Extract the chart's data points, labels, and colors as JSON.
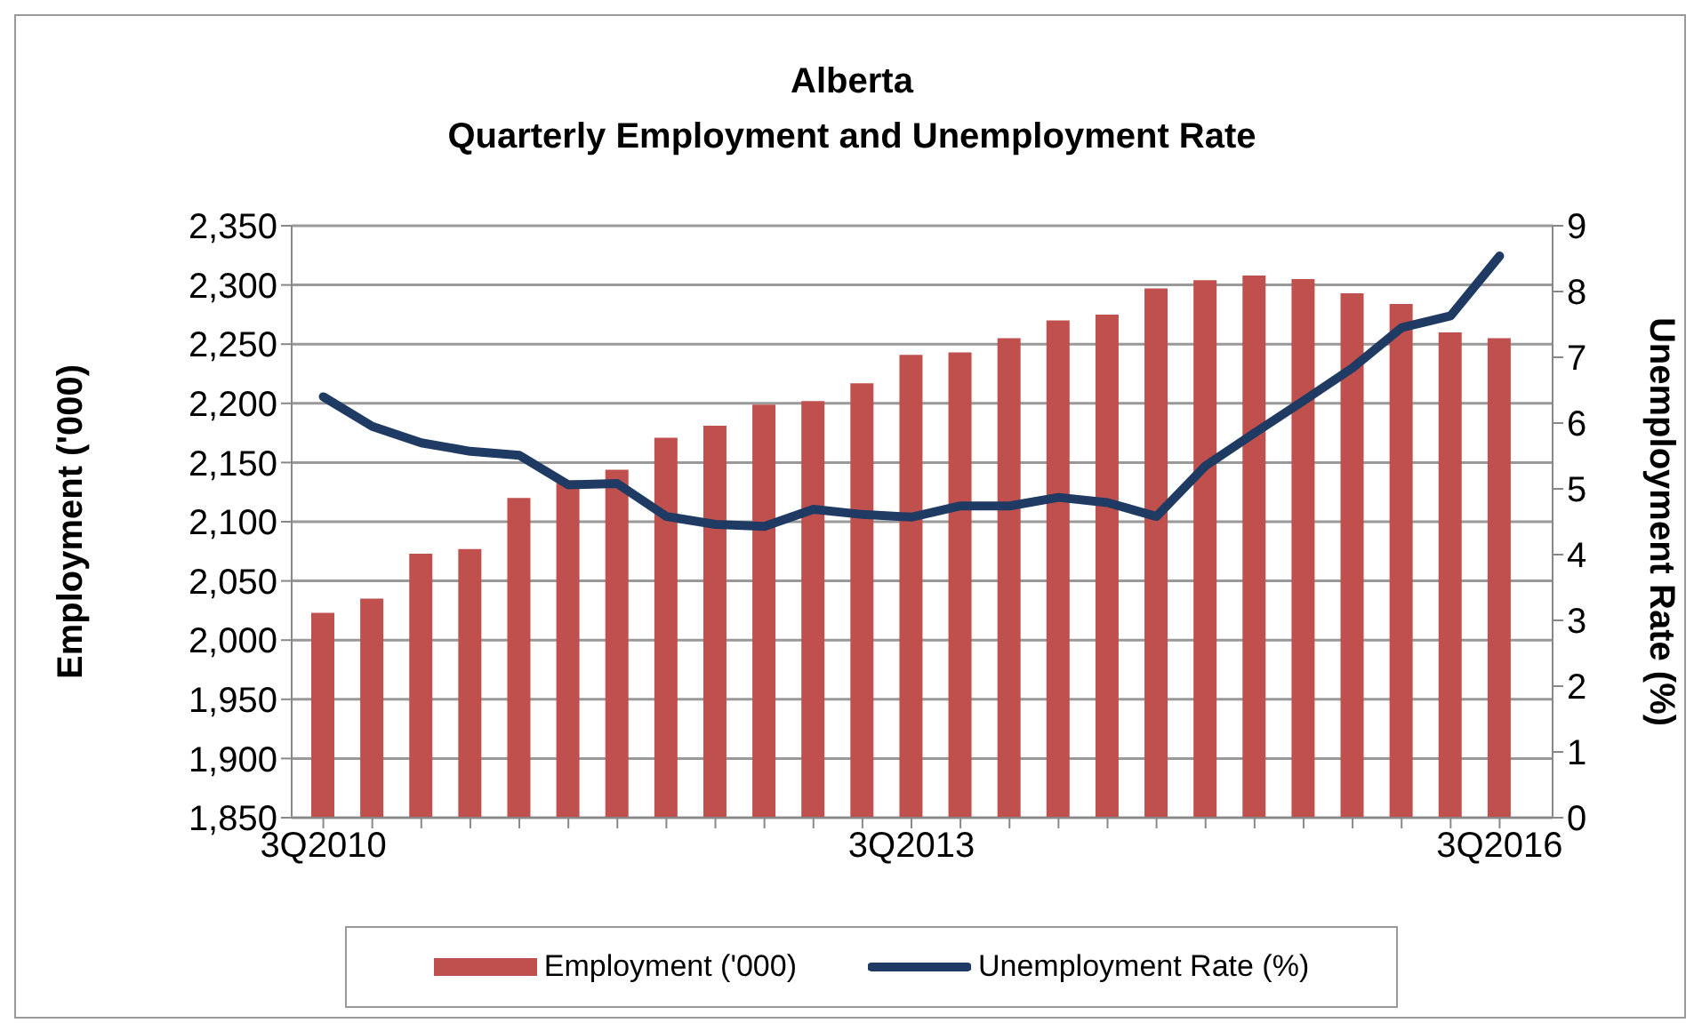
{
  "chart_data": {
    "type": "bar",
    "title": "Alberta\nQuarterly Employment and Unemployment Rate",
    "categories": [
      "3Q2010",
      null,
      null,
      null,
      null,
      null,
      null,
      null,
      null,
      null,
      null,
      null,
      "3Q2013",
      null,
      null,
      null,
      null,
      null,
      null,
      null,
      null,
      null,
      null,
      null,
      "3Q2016"
    ],
    "series": [
      {
        "name": "Employment ('000)",
        "color": "#c0504d",
        "values": [
          2023,
          2035,
          2073,
          2077,
          2120,
          2135,
          2144,
          2171,
          2181,
          2199,
          2202,
          2217,
          2241,
          2243,
          2255,
          2270,
          2275,
          2297,
          2304,
          2308,
          2305,
          2293,
          2284,
          2260,
          2255
        ]
      },
      {
        "name": "Unemployment Rate (%)",
        "type": "line",
        "axis": "y2",
        "color": "#1f3b63",
        "values": [
          6.4,
          5.95,
          5.7,
          5.57,
          5.51,
          5.06,
          5.08,
          4.58,
          4.46,
          4.43,
          4.69,
          4.61,
          4.57,
          4.74,
          4.74,
          4.87,
          4.79,
          4.58,
          5.35,
          5.85,
          6.34,
          6.84,
          7.45,
          7.63,
          8.54
        ]
      }
    ],
    "ylabel": "Employment ('000)",
    "y2label": "Unemployment Rate (%)",
    "ylim": [
      1850,
      2350
    ],
    "yticks": [
      {
        "value": 1850,
        "label": "1,850"
      },
      {
        "value": 1900,
        "label": "1,900"
      },
      {
        "value": 1950,
        "label": "1,950"
      },
      {
        "value": 2000,
        "label": "2,000"
      },
      {
        "value": 2050,
        "label": "2,050"
      },
      {
        "value": 2100,
        "label": "2,100"
      },
      {
        "value": 2150,
        "label": "2,150"
      },
      {
        "value": 2200,
        "label": "2,200"
      },
      {
        "value": 2250,
        "label": "2,250"
      },
      {
        "value": 2300,
        "label": "2,300"
      },
      {
        "value": 2350,
        "label": "2,350"
      }
    ],
    "y2lim": [
      0,
      9
    ],
    "y2ticks": [
      0,
      1,
      2,
      3,
      4,
      5,
      6,
      7,
      8,
      9
    ],
    "grid": "y",
    "legend": "bottom"
  }
}
